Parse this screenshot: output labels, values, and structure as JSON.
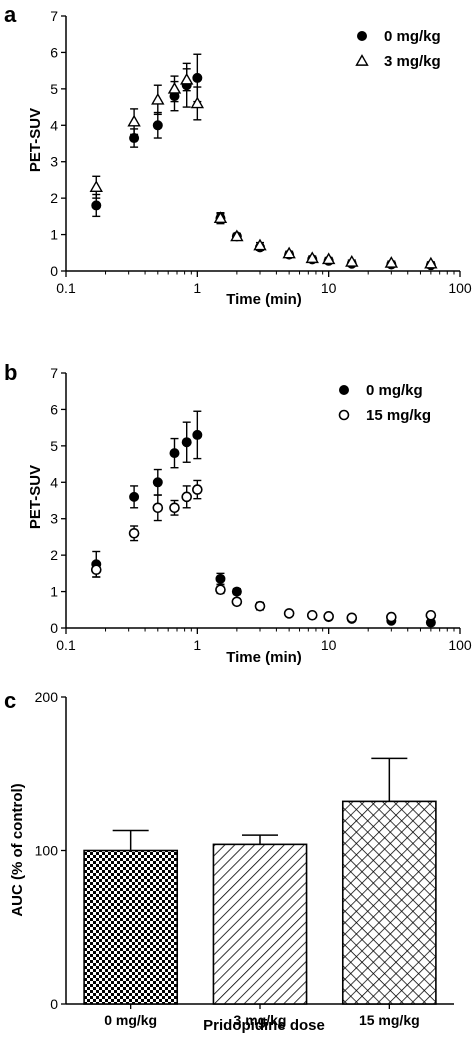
{
  "panel_letters": [
    "a",
    "b",
    "c"
  ],
  "chart_data": [
    {
      "panel": "a",
      "type": "scatter",
      "xscale": "log",
      "xlim": [
        0.1,
        100
      ],
      "ylim": [
        0,
        7
      ],
      "xticks": [
        "0.1",
        "1",
        "10",
        "100"
      ],
      "yticks": [
        "0",
        "1",
        "2",
        "3",
        "4",
        "5",
        "6",
        "7"
      ],
      "xlabel": "Time (min)",
      "ylabel": "PET-SUV",
      "legend_position": "top-right",
      "series": [
        {
          "name": "0 mg/kg",
          "marker": "filled-circle",
          "points": [
            {
              "x": 0.17,
              "y": 1.8,
              "err": 0.3
            },
            {
              "x": 0.33,
              "y": 3.65,
              "err": 0.25
            },
            {
              "x": 0.5,
              "y": 4.0,
              "err": 0.35
            },
            {
              "x": 0.67,
              "y": 4.8,
              "err": 0.4
            },
            {
              "x": 0.83,
              "y": 5.1,
              "err": 0.6
            },
            {
              "x": 1.0,
              "y": 5.3,
              "err": 0.65
            },
            {
              "x": 1.5,
              "y": 1.45,
              "err": 0.15
            },
            {
              "x": 2.0,
              "y": 0.95,
              "err": 0.08
            },
            {
              "x": 3.0,
              "y": 0.65,
              "err": 0.08
            },
            {
              "x": 5.0,
              "y": 0.45,
              "err": 0.05
            },
            {
              "x": 7.5,
              "y": 0.32,
              "err": 0.05
            },
            {
              "x": 10.0,
              "y": 0.28,
              "err": 0.05
            },
            {
              "x": 15.0,
              "y": 0.2,
              "err": 0.05
            },
            {
              "x": 30.0,
              "y": 0.18,
              "err": 0.05
            },
            {
              "x": 60.0,
              "y": 0.16,
              "err": 0.05
            }
          ]
        },
        {
          "name": "3 mg/kg",
          "marker": "open-triangle",
          "points": [
            {
              "x": 0.17,
              "y": 2.3,
              "err": 0.3
            },
            {
              "x": 0.33,
              "y": 4.1,
              "err": 0.35
            },
            {
              "x": 0.5,
              "y": 4.7,
              "err": 0.4
            },
            {
              "x": 0.67,
              "y": 5.0,
              "err": 0.35
            },
            {
              "x": 0.83,
              "y": 5.25,
              "err": 0.3
            },
            {
              "x": 1.0,
              "y": 4.6,
              "err": 0.45
            },
            {
              "x": 1.5,
              "y": 1.45,
              "err": 0.12
            },
            {
              "x": 2.0,
              "y": 0.95,
              "err": 0.08
            },
            {
              "x": 3.0,
              "y": 0.7,
              "err": 0.08
            },
            {
              "x": 5.0,
              "y": 0.48,
              "err": 0.06
            },
            {
              "x": 7.5,
              "y": 0.35,
              "err": 0.06
            },
            {
              "x": 10.0,
              "y": 0.32,
              "err": 0.05
            },
            {
              "x": 15.0,
              "y": 0.25,
              "err": 0.05
            },
            {
              "x": 30.0,
              "y": 0.22,
              "err": 0.05
            },
            {
              "x": 60.0,
              "y": 0.2,
              "err": 0.05
            }
          ]
        }
      ]
    },
    {
      "panel": "b",
      "type": "scatter",
      "xscale": "log",
      "xlim": [
        0.1,
        100
      ],
      "ylim": [
        0,
        7
      ],
      "xticks": [
        "0.1",
        "1",
        "10",
        "100"
      ],
      "yticks": [
        "0",
        "1",
        "2",
        "3",
        "4",
        "5",
        "6",
        "7"
      ],
      "xlabel": "Time (min)",
      "ylabel": "PET-SUV",
      "legend_position": "top-right",
      "series": [
        {
          "name": "0 mg/kg",
          "marker": "filled-circle",
          "points": [
            {
              "x": 0.17,
              "y": 1.75,
              "err": 0.35
            },
            {
              "x": 0.33,
              "y": 3.6,
              "err": 0.3
            },
            {
              "x": 0.5,
              "y": 4.0,
              "err": 0.35
            },
            {
              "x": 0.67,
              "y": 4.8,
              "err": 0.4
            },
            {
              "x": 0.83,
              "y": 5.1,
              "err": 0.55
            },
            {
              "x": 1.0,
              "y": 5.3,
              "err": 0.65
            },
            {
              "x": 1.5,
              "y": 1.35,
              "err": 0.15
            },
            {
              "x": 2.0,
              "y": 1.0,
              "err": 0.08
            },
            {
              "x": 3.0,
              "y": 0.6,
              "err": 0.1
            },
            {
              "x": 5.0,
              "y": 0.4,
              "err": 0.05
            },
            {
              "x": 7.5,
              "y": 0.35,
              "err": 0.05
            },
            {
              "x": 10.0,
              "y": 0.3,
              "err": 0.05
            },
            {
              "x": 15.0,
              "y": 0.25,
              "err": 0.05
            },
            {
              "x": 30.0,
              "y": 0.2,
              "err": 0.05
            },
            {
              "x": 60.0,
              "y": 0.15,
              "err": 0.05
            }
          ]
        },
        {
          "name": "15 mg/kg",
          "marker": "open-circle",
          "points": [
            {
              "x": 0.17,
              "y": 1.6,
              "err": 0.2
            },
            {
              "x": 0.33,
              "y": 2.6,
              "err": 0.2
            },
            {
              "x": 0.5,
              "y": 3.3,
              "err": 0.35
            },
            {
              "x": 0.67,
              "y": 3.3,
              "err": 0.2
            },
            {
              "x": 0.83,
              "y": 3.6,
              "err": 0.3
            },
            {
              "x": 1.0,
              "y": 3.8,
              "err": 0.25
            },
            {
              "x": 1.5,
              "y": 1.05,
              "err": 0.1
            },
            {
              "x": 2.0,
              "y": 0.72,
              "err": 0.08
            },
            {
              "x": 3.0,
              "y": 0.6,
              "err": 0.06
            },
            {
              "x": 5.0,
              "y": 0.4,
              "err": 0.05
            },
            {
              "x": 7.5,
              "y": 0.35,
              "err": 0.05
            },
            {
              "x": 10.0,
              "y": 0.32,
              "err": 0.05
            },
            {
              "x": 15.0,
              "y": 0.28,
              "err": 0.05
            },
            {
              "x": 30.0,
              "y": 0.3,
              "err": 0.05
            },
            {
              "x": 60.0,
              "y": 0.35,
              "err": 0.05
            }
          ]
        }
      ]
    },
    {
      "panel": "c",
      "type": "bar",
      "ylim": [
        0,
        200
      ],
      "yticks": [
        "0",
        "100",
        "200"
      ],
      "ylabel": "AUC (% of control)",
      "xlabel": "Pridopidine dose",
      "categories": [
        "0 mg/kg",
        "3 mg/kg",
        "15 mg/kg"
      ],
      "values": [
        100,
        104,
        132
      ],
      "errors": [
        13,
        6,
        28
      ],
      "patterns": [
        "checker",
        "diagonal",
        "crosshatch"
      ]
    }
  ]
}
